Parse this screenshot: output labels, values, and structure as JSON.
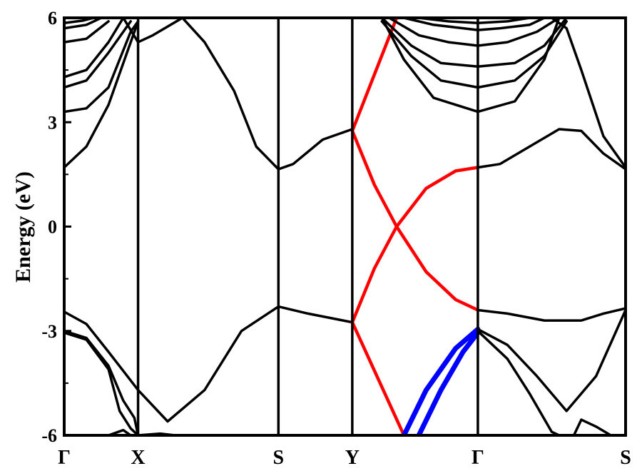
{
  "chart_data": {
    "type": "line",
    "ylabel": "Energy (eV)",
    "xlabel": "",
    "ylim": [
      -6,
      6
    ],
    "y_ticks": [
      "6",
      "3",
      "0",
      "-3",
      "-6"
    ],
    "y_tick_values": [
      6,
      3,
      0,
      -3,
      -6
    ],
    "k_points": [
      "Γ",
      "X",
      "S",
      "Y",
      "Γ",
      "S"
    ],
    "k_point_positions": [
      0,
      1,
      2.9,
      3.9,
      5.6,
      7.6
    ],
    "grid": false,
    "colors": {
      "black_bands": "#000000",
      "red_bands": "#ff0000",
      "blue_bands": "#0000ff"
    },
    "series": [
      {
        "color": "black",
        "points": [
          [
            0,
            1.7
          ],
          [
            0.3,
            2.3
          ],
          [
            0.6,
            3.5
          ],
          [
            1.0,
            5.9
          ]
        ]
      },
      {
        "color": "black",
        "points": [
          [
            0,
            3.3
          ],
          [
            0.3,
            3.4
          ],
          [
            0.6,
            4.0
          ],
          [
            0.9,
            5.6
          ],
          [
            1.0,
            5.9
          ]
        ]
      },
      {
        "color": "black",
        "points": [
          [
            0,
            4.0
          ],
          [
            0.3,
            4.2
          ],
          [
            0.6,
            5.0
          ],
          [
            0.9,
            5.9
          ]
        ]
      },
      {
        "color": "black",
        "points": [
          [
            0,
            4.3
          ],
          [
            0.3,
            4.5
          ],
          [
            0.6,
            5.3
          ],
          [
            0.8,
            6.0
          ]
        ]
      },
      {
        "color": "black",
        "points": [
          [
            0,
            5.3
          ],
          [
            0.3,
            5.4
          ],
          [
            0.6,
            5.9
          ]
        ]
      },
      {
        "color": "black",
        "points": [
          [
            0,
            5.7
          ],
          [
            0.3,
            5.8
          ],
          [
            0.5,
            6.0
          ]
        ]
      },
      {
        "color": "black",
        "points": [
          [
            0,
            5.85
          ],
          [
            0.25,
            5.92
          ],
          [
            0.4,
            6.0
          ]
        ]
      },
      {
        "color": "black",
        "points": [
          [
            0.8,
            6.0
          ],
          [
            1.0,
            5.3
          ],
          [
            1.2,
            5.5
          ],
          [
            1.6,
            6.0
          ]
        ]
      },
      {
        "color": "black",
        "points": [
          [
            1.6,
            6.0
          ],
          [
            1.9,
            5.3
          ],
          [
            2.3,
            3.9
          ],
          [
            2.6,
            2.3
          ],
          [
            2.9,
            1.65
          ]
        ]
      },
      {
        "color": "black",
        "points": [
          [
            2.9,
            1.65
          ],
          [
            3.1,
            1.8
          ],
          [
            3.5,
            2.5
          ],
          [
            3.9,
            2.8
          ]
        ]
      },
      {
        "color": "black",
        "points": [
          [
            0,
            -2.45
          ],
          [
            0.3,
            -2.8
          ],
          [
            0.6,
            -3.6
          ],
          [
            1.0,
            -4.7
          ],
          [
            1.4,
            -5.6
          ],
          [
            1.9,
            -4.7
          ],
          [
            2.4,
            -3.0
          ],
          [
            2.9,
            -2.3
          ]
        ]
      },
      {
        "color": "black",
        "points": [
          [
            2.9,
            -2.3
          ],
          [
            3.3,
            -2.5
          ],
          [
            3.9,
            -2.75
          ]
        ]
      },
      {
        "color": "black",
        "points": [
          [
            0,
            -3.0
          ],
          [
            0.3,
            -3.2
          ],
          [
            0.6,
            -4.0
          ],
          [
            0.8,
            -5.0
          ],
          [
            0.95,
            -5.5
          ],
          [
            1.0,
            -6.0
          ]
        ]
      },
      {
        "color": "black",
        "points": [
          [
            0,
            -3.05
          ],
          [
            0.3,
            -3.25
          ],
          [
            0.6,
            -4.1
          ],
          [
            0.75,
            -5.3
          ],
          [
            0.9,
            -5.8
          ],
          [
            1.0,
            -6.0
          ]
        ]
      },
      {
        "color": "black",
        "points": [
          [
            0.6,
            -6.0
          ],
          [
            0.8,
            -5.85
          ],
          [
            0.9,
            -6.0
          ]
        ]
      },
      {
        "color": "black",
        "points": [
          [
            1.0,
            -6.0
          ],
          [
            1.3,
            -5.95
          ],
          [
            1.5,
            -6.0
          ]
        ]
      },
      {
        "color": "red",
        "points": [
          [
            3.9,
            2.75
          ],
          [
            4.2,
            1.2
          ],
          [
            4.5,
            0.0
          ],
          [
            4.9,
            -1.3
          ],
          [
            5.3,
            -2.1
          ],
          [
            5.6,
            -2.4
          ]
        ]
      },
      {
        "color": "red",
        "points": [
          [
            3.9,
            -2.75
          ],
          [
            4.2,
            -1.2
          ],
          [
            4.5,
            0.0
          ],
          [
            4.9,
            1.1
          ],
          [
            5.3,
            1.6
          ],
          [
            5.6,
            1.7
          ]
        ]
      },
      {
        "color": "red",
        "points": [
          [
            3.9,
            2.75
          ],
          [
            4.5,
            6.0
          ]
        ]
      },
      {
        "color": "red",
        "points": [
          [
            3.9,
            -2.75
          ],
          [
            4.6,
            -6.0
          ]
        ]
      },
      {
        "color": "blue",
        "points": [
          [
            4.6,
            -6.0
          ],
          [
            4.9,
            -4.7
          ],
          [
            5.3,
            -3.5
          ],
          [
            5.6,
            -2.95
          ]
        ]
      },
      {
        "color": "blue",
        "points": [
          [
            4.8,
            -6.0
          ],
          [
            5.1,
            -4.7
          ],
          [
            5.4,
            -3.6
          ],
          [
            5.6,
            -3.05
          ]
        ]
      },
      {
        "color": "black",
        "points": [
          [
            4.3,
            6.0
          ],
          [
            4.7,
            5.2
          ],
          [
            5.1,
            4.7
          ],
          [
            5.6,
            4.6
          ],
          [
            6.1,
            4.7
          ],
          [
            6.5,
            5.2
          ],
          [
            6.8,
            6.0
          ]
        ]
      },
      {
        "color": "black",
        "points": [
          [
            4.3,
            5.9
          ],
          [
            4.7,
            4.9
          ],
          [
            5.1,
            4.2
          ],
          [
            5.6,
            4.0
          ],
          [
            6.1,
            4.2
          ],
          [
            6.5,
            4.9
          ],
          [
            6.8,
            5.9
          ]
        ]
      },
      {
        "color": "black",
        "points": [
          [
            4.4,
            6.0
          ],
          [
            4.8,
            5.5
          ],
          [
            5.2,
            5.3
          ],
          [
            5.6,
            5.2
          ],
          [
            6.0,
            5.3
          ],
          [
            6.4,
            5.6
          ],
          [
            6.7,
            6.0
          ]
        ]
      },
      {
        "color": "black",
        "points": [
          [
            4.3,
            6.0
          ],
          [
            4.6,
            4.8
          ],
          [
            5.0,
            3.7
          ],
          [
            5.6,
            3.3
          ],
          [
            6.1,
            3.6
          ],
          [
            6.5,
            4.8
          ],
          [
            6.7,
            6.0
          ]
        ]
      },
      {
        "color": "black",
        "points": [
          [
            4.6,
            6.0
          ],
          [
            5.0,
            5.8
          ],
          [
            5.4,
            5.7
          ],
          [
            5.6,
            5.65
          ],
          [
            5.9,
            5.7
          ],
          [
            6.3,
            5.8
          ],
          [
            6.5,
            6.0
          ]
        ]
      },
      {
        "color": "black",
        "points": [
          [
            4.8,
            6.0
          ],
          [
            5.2,
            5.9
          ],
          [
            5.6,
            5.85
          ],
          [
            6.0,
            5.9
          ],
          [
            6.3,
            6.0
          ]
        ]
      },
      {
        "color": "black",
        "points": [
          [
            5.6,
            1.7
          ],
          [
            5.9,
            1.8
          ],
          [
            6.3,
            2.3
          ],
          [
            6.7,
            2.8
          ],
          [
            7.0,
            2.75
          ],
          [
            7.3,
            2.1
          ],
          [
            7.6,
            1.65
          ]
        ]
      },
      {
        "color": "black",
        "points": [
          [
            6.6,
            6.0
          ],
          [
            6.8,
            5.7
          ],
          [
            7.0,
            4.5
          ],
          [
            7.3,
            2.6
          ],
          [
            7.6,
            1.7
          ]
        ]
      },
      {
        "color": "black",
        "points": [
          [
            5.6,
            -2.4
          ],
          [
            6.0,
            -2.5
          ],
          [
            6.5,
            -2.7
          ],
          [
            7.0,
            -2.7
          ],
          [
            7.3,
            -2.5
          ],
          [
            7.6,
            -2.35
          ]
        ]
      },
      {
        "color": "black",
        "points": [
          [
            5.6,
            -2.95
          ],
          [
            6.0,
            -3.4
          ],
          [
            6.4,
            -4.3
          ],
          [
            6.8,
            -5.3
          ],
          [
            7.2,
            -4.3
          ],
          [
            7.6,
            -2.4
          ]
        ]
      },
      {
        "color": "black",
        "points": [
          [
            5.6,
            -3.0
          ],
          [
            6.0,
            -3.8
          ],
          [
            6.3,
            -4.8
          ],
          [
            6.6,
            -5.9
          ],
          [
            6.7,
            -6.0
          ]
        ]
      },
      {
        "color": "black",
        "points": [
          [
            6.9,
            -6.0
          ],
          [
            7.0,
            -5.55
          ],
          [
            7.2,
            -5.75
          ],
          [
            7.4,
            -6.0
          ]
        ]
      }
    ]
  }
}
